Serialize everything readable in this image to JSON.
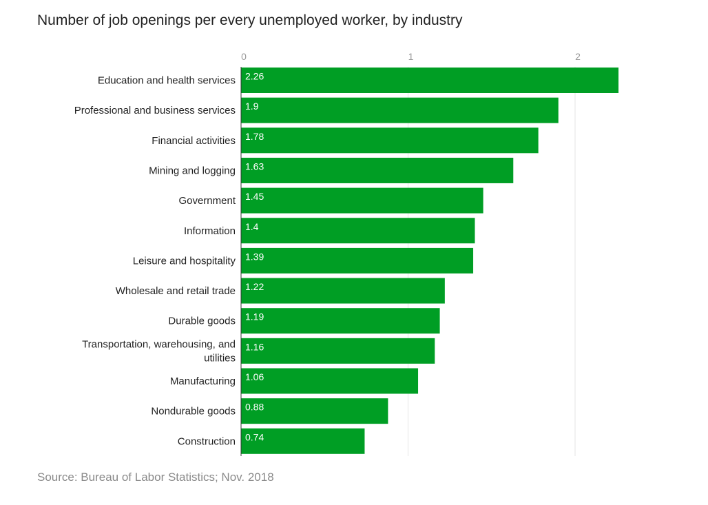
{
  "chart_data": {
    "type": "bar",
    "orientation": "horizontal",
    "title": "Number of job openings per every unemployed worker, by industry",
    "source": "Source: Bureau of Labor Statistics; Nov. 2018",
    "categories": [
      "Education and health services",
      "Professional and business services",
      "Financial activities",
      "Mining and logging",
      "Government",
      "Information",
      "Leisure and hospitality",
      "Wholesale and retail trade",
      "Durable goods",
      "Transportation, warehousing, and utilities",
      "Manufacturing",
      "Nondurable goods",
      "Construction"
    ],
    "values": [
      2.26,
      1.9,
      1.78,
      1.63,
      1.45,
      1.4,
      1.39,
      1.22,
      1.19,
      1.16,
      1.06,
      0.88,
      0.74
    ],
    "data_labels": [
      "2.26",
      "1.9",
      "1.78",
      "1.63",
      "1.45",
      "1.4",
      "1.39",
      "1.22",
      "1.19",
      "1.16",
      "1.06",
      "0.88",
      "0.74"
    ],
    "xticks": [
      0,
      1,
      2
    ],
    "xtick_labels": [
      "0",
      "1",
      "2"
    ],
    "xlim": [
      0,
      2.26
    ],
    "grid": true,
    "bar_color": "#009e24",
    "grid_color": "#e6e6e6"
  }
}
